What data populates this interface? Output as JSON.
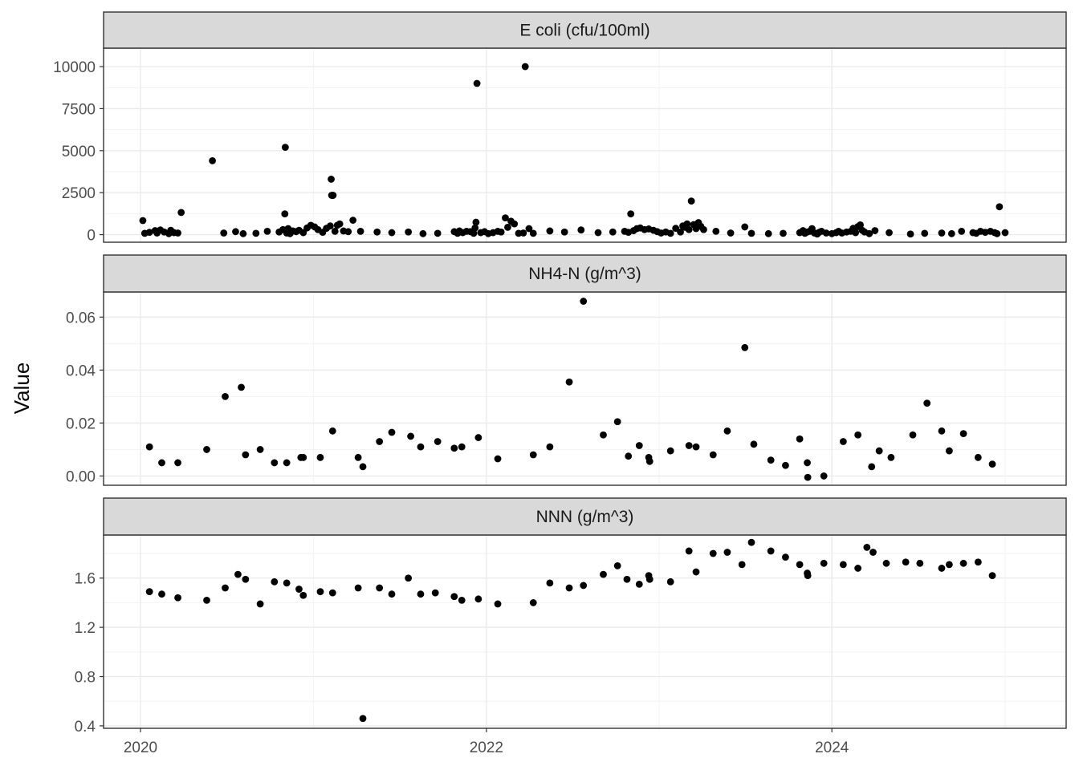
{
  "chart_data": {
    "type": "scatter",
    "ylabel": "Value",
    "xlabel": "",
    "x_ticks": [
      "2020",
      "2022",
      "2024"
    ],
    "xlim": [
      "2019-10-15",
      "2025-05-10"
    ],
    "grid": true,
    "theme": "bw",
    "point_color": "#000000",
    "panels": [
      {
        "name": "E coli (cfu/100ml)",
        "ylim": [
          -450,
          11100
        ],
        "y_ticks": [
          "0",
          "2500",
          "5000",
          "7500",
          "10000"
        ],
        "y_tick_values": [
          0,
          2500,
          5000,
          7500,
          10000
        ],
        "points": [
          [
            "2020-01-06",
            840
          ],
          [
            "2020-01-10",
            80
          ],
          [
            "2020-01-20",
            140
          ],
          [
            "2020-02-01",
            240
          ],
          [
            "2020-02-05",
            100
          ],
          [
            "2020-02-12",
            280
          ],
          [
            "2020-02-20",
            160
          ],
          [
            "2020-03-01",
            60
          ],
          [
            "2020-03-05",
            260
          ],
          [
            "2020-03-12",
            120
          ],
          [
            "2020-03-20",
            100
          ],
          [
            "2020-03-27",
            1320
          ],
          [
            "2020-06-01",
            4400
          ],
          [
            "2020-06-25",
            100
          ],
          [
            "2020-07-20",
            180
          ],
          [
            "2020-08-05",
            60
          ],
          [
            "2020-09-01",
            80
          ],
          [
            "2020-09-25",
            200
          ],
          [
            "2020-10-20",
            160
          ],
          [
            "2020-10-28",
            300
          ],
          [
            "2020-11-01",
            1240
          ],
          [
            "2020-11-02",
            5200
          ],
          [
            "2020-11-05",
            100
          ],
          [
            "2020-11-08",
            360
          ],
          [
            "2020-11-12",
            60
          ],
          [
            "2020-11-18",
            220
          ],
          [
            "2020-11-25",
            180
          ],
          [
            "2020-12-01",
            260
          ],
          [
            "2020-12-10",
            120
          ],
          [
            "2020-12-18",
            400
          ],
          [
            "2020-12-26",
            560
          ],
          [
            "2021-01-03",
            460
          ],
          [
            "2021-01-10",
            300
          ],
          [
            "2021-01-20",
            140
          ],
          [
            "2021-01-28",
            380
          ],
          [
            "2021-02-05",
            520
          ],
          [
            "2021-02-07",
            3300
          ],
          [
            "2021-02-08",
            2340
          ],
          [
            "2021-02-10",
            2340
          ],
          [
            "2021-02-11",
            2340
          ],
          [
            "2021-02-15",
            200
          ],
          [
            "2021-02-20",
            560
          ],
          [
            "2021-02-25",
            640
          ],
          [
            "2021-03-05",
            220
          ],
          [
            "2021-03-15",
            180
          ],
          [
            "2021-03-25",
            860
          ],
          [
            "2021-04-10",
            200
          ],
          [
            "2021-05-15",
            160
          ],
          [
            "2021-06-15",
            120
          ],
          [
            "2021-07-20",
            160
          ],
          [
            "2021-08-20",
            60
          ],
          [
            "2021-09-20",
            80
          ],
          [
            "2021-10-25",
            180
          ],
          [
            "2021-11-01",
            80
          ],
          [
            "2021-11-05",
            220
          ],
          [
            "2021-11-12",
            120
          ],
          [
            "2021-11-20",
            200
          ],
          [
            "2021-11-28",
            180
          ],
          [
            "2021-12-05",
            80
          ],
          [
            "2021-12-08",
            400
          ],
          [
            "2021-12-10",
            740
          ],
          [
            "2021-12-12",
            9000
          ],
          [
            "2021-12-20",
            120
          ],
          [
            "2021-12-28",
            180
          ],
          [
            "2022-01-05",
            60
          ],
          [
            "2022-01-15",
            120
          ],
          [
            "2022-01-25",
            200
          ],
          [
            "2022-02-01",
            160
          ],
          [
            "2022-02-10",
            1000
          ],
          [
            "2022-02-15",
            440
          ],
          [
            "2022-02-22",
            800
          ],
          [
            "2022-03-01",
            640
          ],
          [
            "2022-03-10",
            80
          ],
          [
            "2022-03-20",
            100
          ],
          [
            "2022-03-24",
            10000
          ],
          [
            "2022-04-01",
            360
          ],
          [
            "2022-04-10",
            80
          ],
          [
            "2022-05-15",
            220
          ],
          [
            "2022-06-15",
            160
          ],
          [
            "2022-07-20",
            280
          ],
          [
            "2022-08-25",
            120
          ],
          [
            "2022-09-25",
            160
          ],
          [
            "2022-10-20",
            200
          ],
          [
            "2022-10-28",
            140
          ],
          [
            "2022-11-02",
            1240
          ],
          [
            "2022-11-08",
            240
          ],
          [
            "2022-11-15",
            360
          ],
          [
            "2022-11-22",
            400
          ],
          [
            "2022-12-01",
            300
          ],
          [
            "2022-12-10",
            340
          ],
          [
            "2022-12-20",
            260
          ],
          [
            "2022-12-28",
            180
          ],
          [
            "2023-01-05",
            100
          ],
          [
            "2023-01-15",
            160
          ],
          [
            "2023-01-25",
            80
          ],
          [
            "2023-02-05",
            380
          ],
          [
            "2023-02-15",
            160
          ],
          [
            "2023-02-20",
            520
          ],
          [
            "2023-02-25",
            440
          ],
          [
            "2023-03-01",
            640
          ],
          [
            "2023-03-05",
            300
          ],
          [
            "2023-03-10",
            2000
          ],
          [
            "2023-03-15",
            600
          ],
          [
            "2023-03-20",
            360
          ],
          [
            "2023-03-25",
            720
          ],
          [
            "2023-03-30",
            500
          ],
          [
            "2023-04-05",
            300
          ],
          [
            "2023-05-01",
            200
          ],
          [
            "2023-06-01",
            100
          ],
          [
            "2023-07-01",
            460
          ],
          [
            "2023-07-15",
            80
          ],
          [
            "2023-08-20",
            60
          ],
          [
            "2023-09-20",
            80
          ],
          [
            "2023-10-25",
            120
          ],
          [
            "2023-11-01",
            240
          ],
          [
            "2023-11-05",
            80
          ],
          [
            "2023-11-10",
            160
          ],
          [
            "2023-11-15",
            200
          ],
          [
            "2023-11-20",
            360
          ],
          [
            "2023-11-25",
            100
          ],
          [
            "2023-12-01",
            40
          ],
          [
            "2023-12-05",
            140
          ],
          [
            "2023-12-10",
            200
          ],
          [
            "2023-12-20",
            100
          ],
          [
            "2024-01-01",
            60
          ],
          [
            "2024-01-10",
            120
          ],
          [
            "2024-01-15",
            200
          ],
          [
            "2024-01-22",
            100
          ],
          [
            "2024-02-01",
            160
          ],
          [
            "2024-02-10",
            200
          ],
          [
            "2024-02-15",
            380
          ],
          [
            "2024-02-20",
            120
          ],
          [
            "2024-02-25",
            480
          ],
          [
            "2024-03-01",
            580
          ],
          [
            "2024-03-05",
            260
          ],
          [
            "2024-03-10",
            160
          ],
          [
            "2024-03-20",
            60
          ],
          [
            "2024-04-01",
            240
          ],
          [
            "2024-05-01",
            120
          ],
          [
            "2024-06-15",
            40
          ],
          [
            "2024-07-15",
            80
          ],
          [
            "2024-08-20",
            100
          ],
          [
            "2024-09-10",
            60
          ],
          [
            "2024-10-01",
            200
          ],
          [
            "2024-10-25",
            120
          ],
          [
            "2024-11-01",
            80
          ],
          [
            "2024-11-10",
            200
          ],
          [
            "2024-11-20",
            140
          ],
          [
            "2024-12-01",
            200
          ],
          [
            "2024-12-10",
            120
          ],
          [
            "2024-12-15",
            60
          ],
          [
            "2024-12-20",
            1660
          ],
          [
            "2025-01-01",
            120
          ]
        ]
      },
      {
        "name": "NH4-N (g/m^3)",
        "ylim": [
          -0.0035,
          0.0695
        ],
        "y_ticks": [
          "0.00",
          "0.02",
          "0.04",
          "0.06"
        ],
        "y_tick_values": [
          0,
          0.02,
          0.04,
          0.06
        ],
        "points": [
          [
            "2020-01-20",
            0.011
          ],
          [
            "2020-02-15",
            0.005
          ],
          [
            "2020-03-20",
            0.005
          ],
          [
            "2020-05-20",
            0.01
          ],
          [
            "2020-06-28",
            0.03
          ],
          [
            "2020-08-01",
            0.0335
          ],
          [
            "2020-08-10",
            0.008
          ],
          [
            "2020-09-10",
            0.01
          ],
          [
            "2020-10-10",
            0.005
          ],
          [
            "2020-11-05",
            0.005
          ],
          [
            "2020-12-05",
            0.007
          ],
          [
            "2020-12-10",
            0.007
          ],
          [
            "2021-01-15",
            0.007
          ],
          [
            "2021-02-10",
            0.017
          ],
          [
            "2021-04-05",
            0.007
          ],
          [
            "2021-04-15",
            0.0035
          ],
          [
            "2021-05-20",
            0.013
          ],
          [
            "2021-06-15",
            0.0165
          ],
          [
            "2021-07-25",
            0.015
          ],
          [
            "2021-08-15",
            0.011
          ],
          [
            "2021-09-20",
            0.013
          ],
          [
            "2021-10-25",
            0.0105
          ],
          [
            "2021-11-10",
            0.011
          ],
          [
            "2021-12-15",
            0.0145
          ],
          [
            "2022-01-25",
            0.0065
          ],
          [
            "2022-04-10",
            0.008
          ],
          [
            "2022-05-15",
            0.011
          ],
          [
            "2022-06-25",
            0.0355
          ],
          [
            "2022-07-25",
            0.066
          ],
          [
            "2022-09-05",
            0.0155
          ],
          [
            "2022-10-05",
            0.0205
          ],
          [
            "2022-10-28",
            0.0075
          ],
          [
            "2022-11-20",
            0.0115
          ],
          [
            "2022-12-10",
            0.007
          ],
          [
            "2022-12-12",
            0.0055
          ],
          [
            "2023-01-25",
            0.0095
          ],
          [
            "2023-03-05",
            0.0115
          ],
          [
            "2023-03-20",
            0.011
          ],
          [
            "2023-04-25",
            0.008
          ],
          [
            "2023-05-25",
            0.017
          ],
          [
            "2023-07-01",
            0.0485
          ],
          [
            "2023-07-20",
            0.012
          ],
          [
            "2023-08-25",
            0.006
          ],
          [
            "2023-09-25",
            0.004
          ],
          [
            "2023-10-25",
            0.014
          ],
          [
            "2023-11-10",
            0.005
          ],
          [
            "2023-11-11",
            -0.0005
          ],
          [
            "2023-12-15",
            0.0
          ],
          [
            "2024-01-25",
            0.013
          ],
          [
            "2024-02-25",
            0.0155
          ],
          [
            "2024-03-25",
            0.0035
          ],
          [
            "2024-04-10",
            0.0095
          ],
          [
            "2024-05-05",
            0.007
          ],
          [
            "2024-06-20",
            0.0155
          ],
          [
            "2024-07-20",
            0.0275
          ],
          [
            "2024-08-20",
            0.017
          ],
          [
            "2024-09-05",
            0.0095
          ],
          [
            "2024-10-05",
            0.016
          ],
          [
            "2024-11-05",
            0.007
          ],
          [
            "2024-12-05",
            0.0045
          ]
        ]
      },
      {
        "name": "NNN (g/m^3)",
        "ylim": [
          0.38,
          1.95
        ],
        "y_ticks": [
          "0.4",
          "0.8",
          "1.2",
          "1.6"
        ],
        "y_tick_values": [
          0.4,
          0.8,
          1.2,
          1.6
        ],
        "points": [
          [
            "2020-01-20",
            1.49
          ],
          [
            "2020-02-15",
            1.47
          ],
          [
            "2020-03-20",
            1.44
          ],
          [
            "2020-05-20",
            1.42
          ],
          [
            "2020-06-28",
            1.52
          ],
          [
            "2020-07-25",
            1.63
          ],
          [
            "2020-08-10",
            1.59
          ],
          [
            "2020-09-10",
            1.39
          ],
          [
            "2020-10-10",
            1.57
          ],
          [
            "2020-11-05",
            1.56
          ],
          [
            "2020-12-01",
            1.51
          ],
          [
            "2020-12-10",
            1.46
          ],
          [
            "2021-01-15",
            1.49
          ],
          [
            "2021-02-10",
            1.48
          ],
          [
            "2021-04-05",
            1.52
          ],
          [
            "2021-04-15",
            0.46
          ],
          [
            "2021-05-20",
            1.52
          ],
          [
            "2021-06-15",
            1.47
          ],
          [
            "2021-07-20",
            1.6
          ],
          [
            "2021-08-15",
            1.47
          ],
          [
            "2021-09-15",
            1.48
          ],
          [
            "2021-10-25",
            1.45
          ],
          [
            "2021-11-10",
            1.42
          ],
          [
            "2021-12-15",
            1.43
          ],
          [
            "2022-01-25",
            1.39
          ],
          [
            "2022-04-10",
            1.4
          ],
          [
            "2022-05-15",
            1.56
          ],
          [
            "2022-06-25",
            1.52
          ],
          [
            "2022-07-25",
            1.54
          ],
          [
            "2022-09-05",
            1.63
          ],
          [
            "2022-10-05",
            1.7
          ],
          [
            "2022-10-25",
            1.59
          ],
          [
            "2022-11-20",
            1.55
          ],
          [
            "2022-12-10",
            1.62
          ],
          [
            "2022-12-12",
            1.59
          ],
          [
            "2023-01-25",
            1.57
          ],
          [
            "2023-03-05",
            1.82
          ],
          [
            "2023-03-20",
            1.65
          ],
          [
            "2023-04-25",
            1.8
          ],
          [
            "2023-05-25",
            1.81
          ],
          [
            "2023-06-25",
            1.71
          ],
          [
            "2023-07-15",
            1.89
          ],
          [
            "2023-08-25",
            1.82
          ],
          [
            "2023-09-25",
            1.77
          ],
          [
            "2023-10-25",
            1.71
          ],
          [
            "2023-11-10",
            1.64
          ],
          [
            "2023-11-11",
            1.62
          ],
          [
            "2023-12-15",
            1.72
          ],
          [
            "2024-01-25",
            1.71
          ],
          [
            "2024-02-25",
            1.68
          ],
          [
            "2024-03-15",
            1.85
          ],
          [
            "2024-03-28",
            1.81
          ],
          [
            "2024-04-25",
            1.72
          ],
          [
            "2024-06-05",
            1.73
          ],
          [
            "2024-07-05",
            1.72
          ],
          [
            "2024-08-20",
            1.68
          ],
          [
            "2024-09-05",
            1.71
          ],
          [
            "2024-10-05",
            1.72
          ],
          [
            "2024-11-05",
            1.73
          ],
          [
            "2024-12-05",
            1.62
          ]
        ]
      }
    ]
  }
}
